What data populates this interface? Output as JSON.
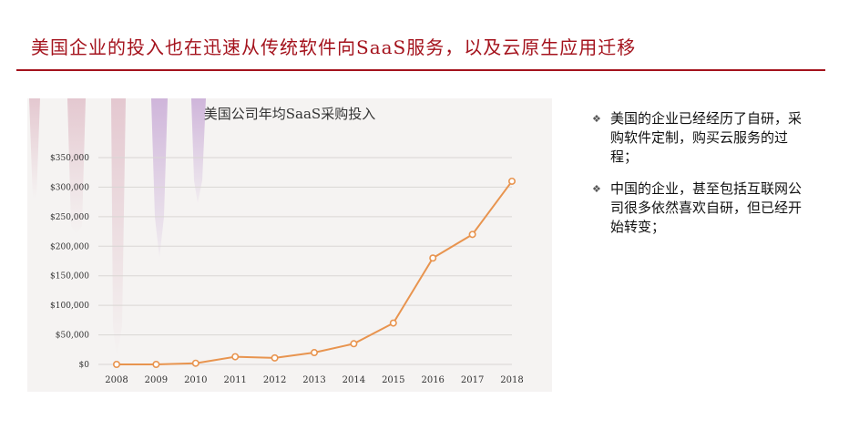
{
  "slide": {
    "title": "美国企业的投入也在迅速从传统软件向SaaS服务，以及云原生应用迁移"
  },
  "bullets": [
    {
      "marker": "❖",
      "text": "美国的企业已经经历了自研，采购软件定制，购买云服务的过程；"
    },
    {
      "marker": "❖",
      "text": "中国的企业，甚至包括互联网公司很多依然喜欢自研，但已经开始转变；"
    }
  ],
  "chart_data": {
    "type": "line",
    "title": "美国公司年均SaaS采购投入",
    "xlabel": "",
    "ylabel": "",
    "categories": [
      "2008",
      "2009",
      "2010",
      "2011",
      "2012",
      "2013",
      "2014",
      "2015",
      "2016",
      "2017",
      "2018"
    ],
    "series": [
      {
        "values": [
          0,
          0,
          2000,
          13000,
          11000,
          20000,
          35000,
          70000,
          180000,
          220000,
          310000
        ]
      }
    ],
    "y_ticks": [
      {
        "value": 0,
        "label": "$0"
      },
      {
        "value": 50000,
        "label": "$50,000"
      },
      {
        "value": 100000,
        "label": "$100,000"
      },
      {
        "value": 150000,
        "label": "$150,000"
      },
      {
        "value": 200000,
        "label": "$200,000"
      },
      {
        "value": 250000,
        "label": "$250,000"
      },
      {
        "value": 300000,
        "label": "$300,000"
      },
      {
        "value": 350000,
        "label": "$350,000"
      }
    ],
    "ylim": [
      0,
      350000
    ],
    "grid": true,
    "legend": "none",
    "colors": {
      "line": "#e8944f",
      "grid": "#d9d6d4",
      "text": "#333333"
    }
  }
}
